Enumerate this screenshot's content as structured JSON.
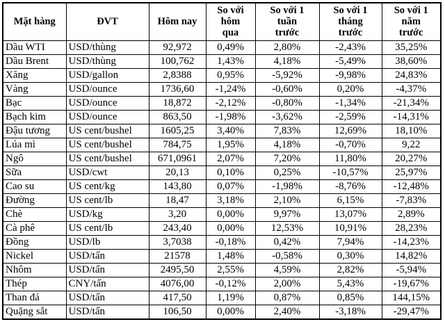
{
  "colors": {
    "background": "#ffffff",
    "border": "#000000",
    "text": "#000000"
  },
  "chart_data": {
    "type": "table",
    "title": "",
    "columns": [
      "Mặt hàng",
      "ĐVT",
      "Hôm nay",
      "So với\nhôm\nqua",
      "So với 1\ntuần\ntrước",
      "So với 1\ntháng\ntrước",
      "So với 1\nnăm\ntrước"
    ],
    "rows": [
      [
        "Dầu WTI",
        "USD/thùng",
        "92,972",
        "0,49%",
        "2,80%",
        "-2,43%",
        "35,25%"
      ],
      [
        "Dầu Brent",
        "USD/thùng",
        "100,762",
        "1,43%",
        "4,18%",
        "-5,49%",
        "38,60%"
      ],
      [
        "Xăng",
        "USD/gallon",
        "2,8388",
        "0,95%",
        "-5,92%",
        "-9,98%",
        "24,83%"
      ],
      [
        "Vàng",
        "USD/ounce",
        "1736,60",
        "-1,24%",
        "-0,60%",
        "0,20%",
        "-4,37%"
      ],
      [
        "Bạc",
        "USD/ounce",
        "18,872",
        "-2,12%",
        "-0,80%",
        "-1,34%",
        "-21,34%"
      ],
      [
        "Bạch kim",
        "USD/ounce",
        "863,50",
        "-1,98%",
        "-3,62%",
        "-2,59%",
        "-14,31%"
      ],
      [
        "Đậu tương",
        "US cent/bushel",
        "1605,25",
        "3,40%",
        "7,83%",
        "12,69%",
        "18,10%"
      ],
      [
        "Lúa mì",
        "US cent/bushel",
        "784,75",
        "1,95%",
        "4,18%",
        "-0,70%",
        "9,22"
      ],
      [
        "Ngô",
        "US cent/bushel",
        "671,0961",
        "2,07%",
        "7,20%",
        "11,80%",
        "20,27%"
      ],
      [
        "Sữa",
        "USD/cwt",
        "20,13",
        "0,10%",
        "0,25%",
        "-10,57%",
        "25,97%"
      ],
      [
        "Cao su",
        "US cent/kg",
        "143,80",
        "0,07%",
        "-1,98%",
        "-8,76%",
        "-12,48%"
      ],
      [
        "Đường",
        "US cent/lb",
        "18,47",
        "3,18%",
        "2,10%",
        "6,15%",
        "-7,83%"
      ],
      [
        "Chè",
        "USD/kg",
        "3,20",
        "0,00%",
        "9,97%",
        "13,07%",
        "2,89%"
      ],
      [
        "Cà phê",
        "US cent/lb",
        "243,40",
        "0,00%",
        "12,53%",
        "10,91%",
        "28,23%"
      ],
      [
        "Đồng",
        "USD/lb",
        "3,7038",
        "-0,18%",
        "0,42%",
        "7,94%",
        "-14,23%"
      ],
      [
        "Nickel",
        "USD/tấn",
        "21578",
        "1,48%",
        "-0,58%",
        "0,30%",
        "14,82%"
      ],
      [
        "Nhôm",
        "USD/tấn",
        "2495,50",
        "2,55%",
        "4,59%",
        "2,82%",
        "-5,94%"
      ],
      [
        "Thép",
        "CNY/tấn",
        "4076,00",
        "-0,12%",
        "2,00%",
        "5,43%",
        "-19,67%"
      ],
      [
        "Than đá",
        "USD/tấn",
        "417,50",
        "1,19%",
        "0,87%",
        "0,85%",
        "144,15%"
      ],
      [
        "Quặng sắt",
        "USD/tấn",
        "106,50",
        "0,00%",
        "2,40%",
        "-3,18%",
        "-29,47%"
      ]
    ]
  }
}
